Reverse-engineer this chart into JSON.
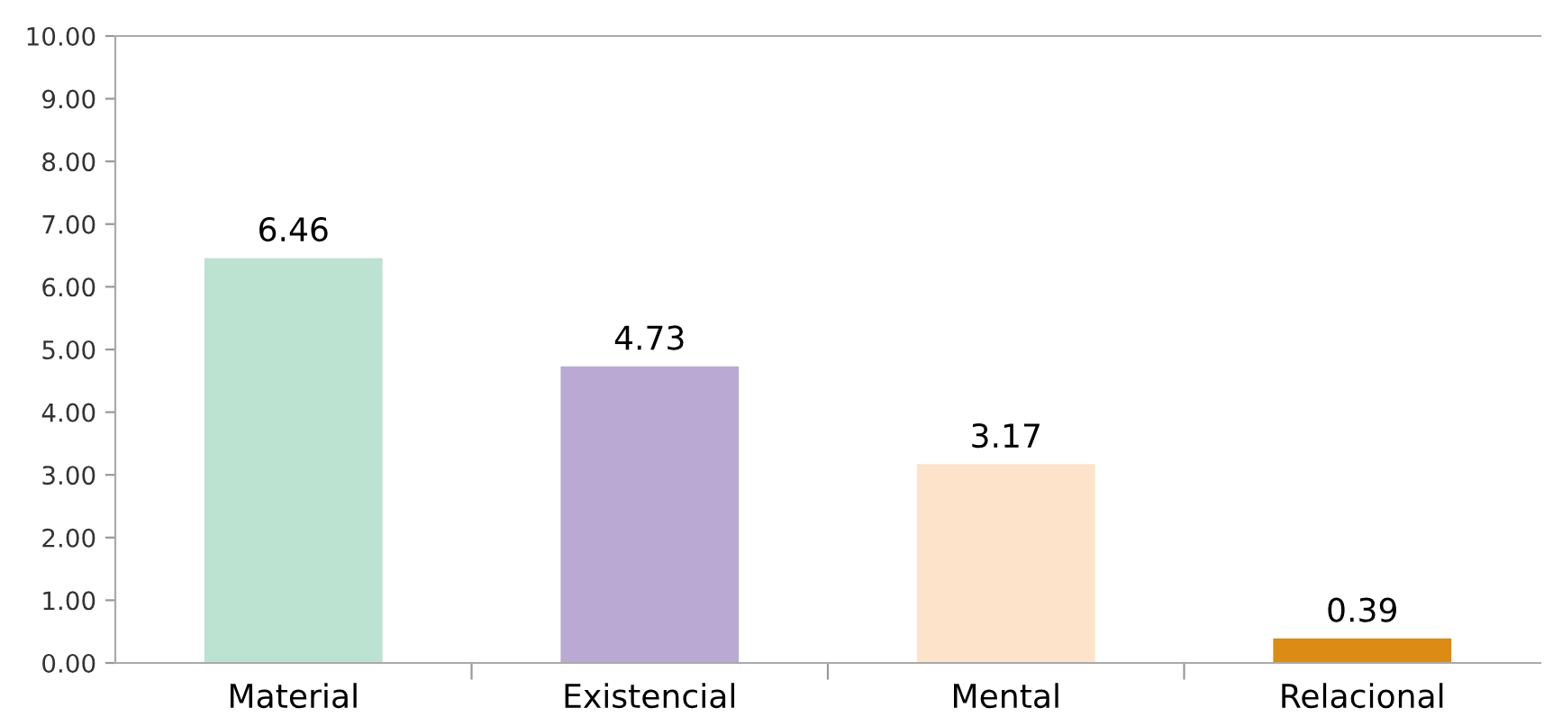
{
  "chart_data": {
    "type": "bar",
    "categories": [
      "Material",
      "Existencial",
      "Mental",
      "Relacional"
    ],
    "values": [
      6.46,
      4.73,
      3.17,
      0.39
    ],
    "colors": [
      "#bce3d2",
      "#b9a9d3",
      "#fde3c9",
      "#dc8b14"
    ],
    "data_labels": true,
    "ylim": [
      0,
      10
    ],
    "yticks": [
      {
        "value": 0,
        "label": "0.00"
      },
      {
        "value": 1,
        "label": "1.00"
      },
      {
        "value": 2,
        "label": "2.00"
      },
      {
        "value": 3,
        "label": "3.00"
      },
      {
        "value": 4,
        "label": "4.00"
      },
      {
        "value": 5,
        "label": "5.00"
      },
      {
        "value": 6,
        "label": "6.00"
      },
      {
        "value": 7,
        "label": "7.00"
      },
      {
        "value": 8,
        "label": "8.00"
      },
      {
        "value": 9,
        "label": "9.00"
      },
      {
        "value": 10,
        "label": "10.00"
      }
    ],
    "grid": false
  }
}
